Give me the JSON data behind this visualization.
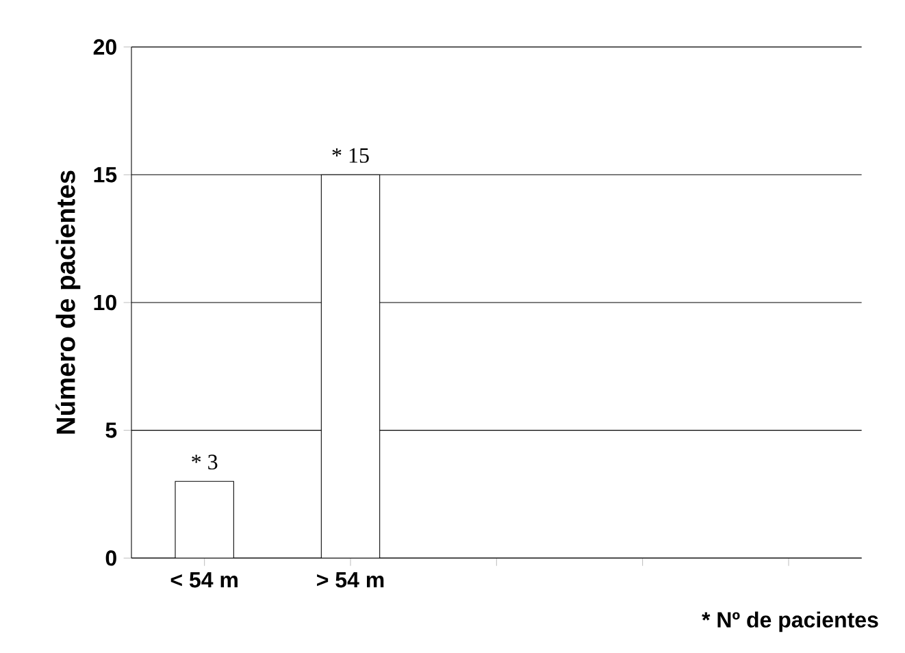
{
  "chart_data": {
    "type": "bar",
    "ylabel": "Número de pacientes",
    "categories": [
      "< 54 m",
      "> 54 m",
      null,
      null,
      null
    ],
    "values": [
      3,
      15,
      null,
      null,
      null
    ],
    "value_labels": [
      "* 3",
      "* 15",
      null,
      null,
      null
    ],
    "color": "#ffffff",
    "ylim": [
      0,
      20
    ],
    "yticks": [
      0,
      5,
      10,
      15,
      20
    ],
    "grid": "y",
    "annotations": [
      "* Nº de pacientes"
    ]
  }
}
